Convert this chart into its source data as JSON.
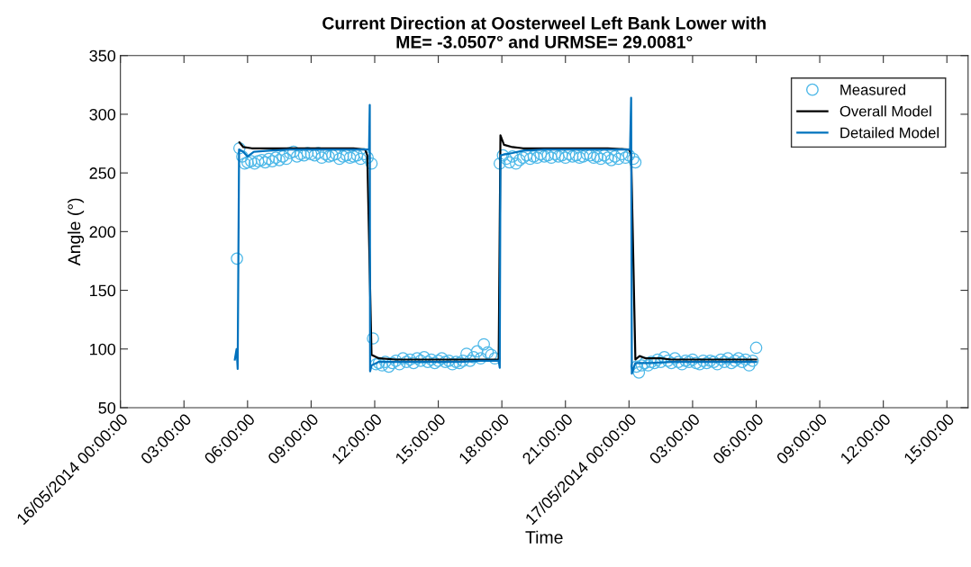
{
  "chart_data": {
    "type": "line",
    "title": "Current Direction at Oosterweel Left Bank Lower with\nME= -3.0507° and URMSE= 29.0081°",
    "xlabel": "Time",
    "ylabel": "Angle (°)",
    "xlim": [
      "2014-05-16T00:00",
      "2014-05-17T16:00"
    ],
    "ylim": [
      50,
      350
    ],
    "yticks": [
      50,
      100,
      150,
      200,
      250,
      300,
      350
    ],
    "xticks": [
      {
        "value": "2014-05-16T00:00",
        "label": "16/05/2014 00:00:00"
      },
      {
        "value": "2014-05-16T03:00",
        "label": "03:00:00"
      },
      {
        "value": "2014-05-16T06:00",
        "label": "06:00:00"
      },
      {
        "value": "2014-05-16T09:00",
        "label": "09:00:00"
      },
      {
        "value": "2014-05-16T12:00",
        "label": "12:00:00"
      },
      {
        "value": "2014-05-16T15:00",
        "label": "15:00:00"
      },
      {
        "value": "2014-05-16T18:00",
        "label": "18:00:00"
      },
      {
        "value": "2014-05-16T21:00",
        "label": "21:00:00"
      },
      {
        "value": "2014-05-17T00:00",
        "label": "17/05/2014 00:00:00"
      },
      {
        "value": "2014-05-17T03:00",
        "label": "03:00:00"
      },
      {
        "value": "2014-05-17T06:00",
        "label": "06:00:00"
      },
      {
        "value": "2014-05-17T09:00",
        "label": "09:00:00"
      },
      {
        "value": "2014-05-17T12:00",
        "label": "12:00:00"
      },
      {
        "value": "2014-05-17T15:00",
        "label": "15:00:00"
      }
    ],
    "grid": false,
    "legend": "top right",
    "series": [
      {
        "name": "Measured",
        "type": "scatter",
        "marker": "circle",
        "color": "#4db8e8",
        "x": [
          "2014-05-16T05:30",
          "2014-05-16T05:37",
          "2014-05-16T05:45",
          "2014-05-16T05:52",
          "2014-05-16T06:00",
          "2014-05-16T06:10",
          "2014-05-16T06:20",
          "2014-05-16T06:30",
          "2014-05-16T06:40",
          "2014-05-16T06:50",
          "2014-05-16T07:00",
          "2014-05-16T07:10",
          "2014-05-16T07:20",
          "2014-05-16T07:30",
          "2014-05-16T07:40",
          "2014-05-16T07:50",
          "2014-05-16T08:00",
          "2014-05-16T08:10",
          "2014-05-16T08:20",
          "2014-05-16T08:30",
          "2014-05-16T08:40",
          "2014-05-16T08:50",
          "2014-05-16T09:00",
          "2014-05-16T09:10",
          "2014-05-16T09:20",
          "2014-05-16T09:30",
          "2014-05-16T09:40",
          "2014-05-16T09:50",
          "2014-05-16T10:00",
          "2014-05-16T10:10",
          "2014-05-16T10:20",
          "2014-05-16T10:30",
          "2014-05-16T10:40",
          "2014-05-16T10:50",
          "2014-05-16T11:00",
          "2014-05-16T11:10",
          "2014-05-16T11:20",
          "2014-05-16T11:30",
          "2014-05-16T11:40",
          "2014-05-16T11:51",
          "2014-05-16T11:55",
          "2014-05-16T12:04",
          "2014-05-16T12:12",
          "2014-05-16T12:21",
          "2014-05-16T12:30",
          "2014-05-16T12:40",
          "2014-05-16T12:50",
          "2014-05-16T13:00",
          "2014-05-16T13:10",
          "2014-05-16T13:20",
          "2014-05-16T13:30",
          "2014-05-16T13:40",
          "2014-05-16T13:50",
          "2014-05-16T14:00",
          "2014-05-16T14:10",
          "2014-05-16T14:20",
          "2014-05-16T14:30",
          "2014-05-16T14:40",
          "2014-05-16T14:50",
          "2014-05-16T15:00",
          "2014-05-16T15:10",
          "2014-05-16T15:20",
          "2014-05-16T15:30",
          "2014-05-16T15:40",
          "2014-05-16T15:50",
          "2014-05-16T16:00",
          "2014-05-16T16:10",
          "2014-05-16T16:20",
          "2014-05-16T16:30",
          "2014-05-16T16:40",
          "2014-05-16T16:50",
          "2014-05-16T17:00",
          "2014-05-16T17:09",
          "2014-05-16T17:20",
          "2014-05-16T17:30",
          "2014-05-16T17:40",
          "2014-05-16T17:54",
          "2014-05-16T18:03",
          "2014-05-16T18:12",
          "2014-05-16T18:21",
          "2014-05-16T18:30",
          "2014-05-16T18:40",
          "2014-05-16T18:50",
          "2014-05-16T19:00",
          "2014-05-16T19:10",
          "2014-05-16T19:20",
          "2014-05-16T19:30",
          "2014-05-16T19:40",
          "2014-05-16T19:50",
          "2014-05-16T20:00",
          "2014-05-16T20:10",
          "2014-05-16T20:20",
          "2014-05-16T20:30",
          "2014-05-16T20:40",
          "2014-05-16T20:50",
          "2014-05-16T21:00",
          "2014-05-16T21:10",
          "2014-05-16T21:20",
          "2014-05-16T21:30",
          "2014-05-16T21:40",
          "2014-05-16T21:50",
          "2014-05-16T22:00",
          "2014-05-16T22:10",
          "2014-05-16T22:20",
          "2014-05-16T22:30",
          "2014-05-16T22:40",
          "2014-05-16T22:50",
          "2014-05-16T23:00",
          "2014-05-16T23:10",
          "2014-05-16T23:20",
          "2014-05-16T23:30",
          "2014-05-16T23:40",
          "2014-05-16T23:50",
          "2014-05-17T00:00",
          "2014-05-17T00:12",
          "2014-05-17T00:18",
          "2014-05-17T00:21",
          "2014-05-17T00:28",
          "2014-05-17T00:36",
          "2014-05-17T00:45",
          "2014-05-17T00:54",
          "2014-05-17T01:03",
          "2014-05-17T01:12",
          "2014-05-17T01:21",
          "2014-05-17T01:30",
          "2014-05-17T01:40",
          "2014-05-17T01:50",
          "2014-05-17T02:00",
          "2014-05-17T02:10",
          "2014-05-17T02:20",
          "2014-05-17T02:30",
          "2014-05-17T02:40",
          "2014-05-17T02:50",
          "2014-05-17T03:00",
          "2014-05-17T03:10",
          "2014-05-17T03:20",
          "2014-05-17T03:30",
          "2014-05-17T03:40",
          "2014-05-17T03:50",
          "2014-05-17T04:00",
          "2014-05-17T04:10",
          "2014-05-17T04:20",
          "2014-05-17T04:30",
          "2014-05-17T04:40",
          "2014-05-17T04:50",
          "2014-05-17T05:00",
          "2014-05-17T05:10",
          "2014-05-17T05:20",
          "2014-05-17T05:30",
          "2014-05-17T05:40",
          "2014-05-17T05:50",
          "2014-05-17T06:00"
        ],
        "values": [
          177,
          271,
          264,
          258,
          259,
          260,
          258,
          260,
          261,
          259,
          262,
          260,
          263,
          261,
          264,
          262,
          267,
          268,
          264,
          266,
          265,
          267,
          266,
          265,
          267,
          263,
          266,
          264,
          265,
          266,
          262,
          264,
          265,
          263,
          264,
          265,
          262,
          266,
          263,
          258,
          109,
          87,
          88,
          86,
          89,
          85,
          88,
          90,
          87,
          92,
          89,
          91,
          88,
          92,
          90,
          93,
          89,
          91,
          88,
          90,
          92,
          89,
          90,
          87,
          89,
          88,
          90,
          96,
          90,
          93,
          98,
          92,
          104,
          97,
          95,
          92,
          258,
          265,
          262,
          259,
          264,
          258,
          261,
          263,
          265,
          262,
          264,
          263,
          266,
          264,
          265,
          263,
          266,
          264,
          265,
          263,
          266,
          264,
          265,
          263,
          264,
          266,
          265,
          263,
          264,
          262,
          265,
          263,
          261,
          264,
          262,
          266,
          263,
          265,
          262,
          259,
          85,
          80,
          86,
          88,
          86,
          89,
          88,
          91,
          89,
          93,
          90,
          88,
          92,
          89,
          87,
          90,
          89,
          91,
          88,
          87,
          90,
          88,
          90,
          89,
          87,
          91,
          89,
          92,
          88,
          90,
          92,
          89,
          91,
          86,
          90,
          101
        ]
      },
      {
        "name": "Overall Model",
        "color": "#000000",
        "x": [
          "2014-05-16T05:37",
          "2014-05-16T05:48",
          "2014-05-16T06:12",
          "2014-05-16T07:00",
          "2014-05-16T08:00",
          "2014-05-16T09:00",
          "2014-05-16T10:00",
          "2014-05-16T11:00",
          "2014-05-16T11:33",
          "2014-05-16T11:39",
          "2014-05-16T11:51",
          "2014-05-16T12:12",
          "2014-05-16T13:00",
          "2014-05-16T14:00",
          "2014-05-16T15:00",
          "2014-05-16T16:00",
          "2014-05-16T17:00",
          "2014-05-16T17:51",
          "2014-05-16T17:56",
          "2014-05-16T18:06",
          "2014-05-16T18:30",
          "2014-05-16T19:00",
          "2014-05-16T20:00",
          "2014-05-16T21:00",
          "2014-05-16T22:00",
          "2014-05-16T23:00",
          "2014-05-17T00:00",
          "2014-05-17T00:06",
          "2014-05-17T00:18",
          "2014-05-17T00:30",
          "2014-05-17T00:48",
          "2014-05-17T01:30",
          "2014-05-17T02:00",
          "2014-05-17T03:00",
          "2014-05-17T04:00",
          "2014-05-17T05:00",
          "2014-05-17T06:00"
        ],
        "values": [
          276,
          272,
          271,
          271,
          271,
          271,
          271,
          271,
          270,
          265,
          95,
          92,
          91,
          91,
          91,
          91,
          91,
          91,
          282,
          274,
          272,
          271,
          271,
          271,
          271,
          271,
          270,
          266,
          91,
          94,
          92,
          92,
          91,
          91,
          91,
          91,
          91
        ]
      },
      {
        "name": "Detailed Model",
        "color": "#0072bd",
        "x": [
          "2014-05-16T05:24",
          "2014-05-16T05:29",
          "2014-05-16T05:32",
          "2014-05-16T05:36",
          "2014-05-16T05:48",
          "2014-05-16T06:00",
          "2014-05-16T06:18",
          "2014-05-16T07:00",
          "2014-05-16T08:00",
          "2014-05-16T09:00",
          "2014-05-16T10:00",
          "2014-05-16T11:00",
          "2014-05-16T11:36",
          "2014-05-16T11:44",
          "2014-05-16T11:46",
          "2014-05-16T11:47",
          "2014-05-16T11:51",
          "2014-05-16T12:12",
          "2014-05-16T13:00",
          "2014-05-16T14:00",
          "2014-05-16T15:00",
          "2014-05-16T16:00",
          "2014-05-16T17:00",
          "2014-05-16T17:51",
          "2014-05-16T17:54",
          "2014-05-16T17:56",
          "2014-05-16T18:12",
          "2014-05-16T18:30",
          "2014-05-16T19:00",
          "2014-05-16T20:00",
          "2014-05-16T21:00",
          "2014-05-16T22:00",
          "2014-05-16T23:00",
          "2014-05-17T00:03",
          "2014-05-17T00:06",
          "2014-05-17T00:08",
          "2014-05-17T00:18",
          "2014-05-17T01:00",
          "2014-05-17T02:00",
          "2014-05-17T03:00",
          "2014-05-17T04:00",
          "2014-05-17T05:00",
          "2014-05-17T06:00"
        ],
        "values": [
          91,
          100,
          83,
          270,
          268,
          264,
          268,
          269,
          270,
          270,
          270,
          270,
          270,
          270,
          308,
          81,
          86,
          89,
          89,
          89,
          89,
          89,
          90,
          90,
          84,
          265,
          266,
          267,
          269,
          270,
          270,
          270,
          270,
          270,
          314,
          79,
          88,
          88,
          89,
          89,
          89,
          89,
          89
        ]
      }
    ]
  }
}
